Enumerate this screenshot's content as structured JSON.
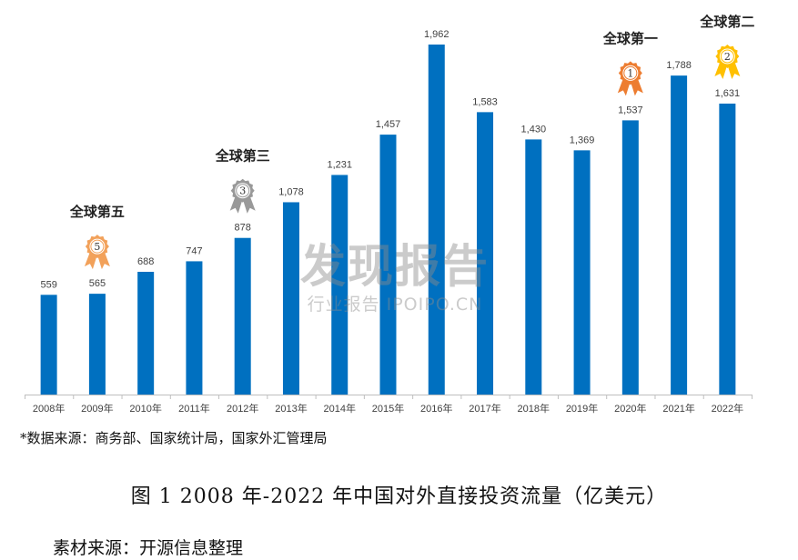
{
  "chart_data": {
    "type": "bar",
    "categories": [
      "2008年",
      "2009年",
      "2010年",
      "2011年",
      "2012年",
      "2013年",
      "2014年",
      "2015年",
      "2016年",
      "2017年",
      "2018年",
      "2019年",
      "2020年",
      "2021年",
      "2022年"
    ],
    "values": [
      559,
      565,
      688,
      747,
      878,
      1078,
      1231,
      1457,
      1962,
      1583,
      1430,
      1369,
      1537,
      1788,
      1631
    ],
    "value_labels": [
      "559",
      "565",
      "688",
      "747",
      "878",
      "1,078",
      "1,231",
      "1,457",
      "1,962",
      "1,583",
      "1,430",
      "1,369",
      "1,537",
      "1,788",
      "1,631"
    ],
    "bar_color": "#0070c0",
    "ylim": [
      0,
      2000
    ],
    "grid": false,
    "annotations": [
      {
        "category": "2009年",
        "label": "全球第五",
        "rank": "5",
        "color": "#f2a15a"
      },
      {
        "category": "2012年",
        "label": "全球第三",
        "rank": "3",
        "color": "#999999"
      },
      {
        "category": "2020年",
        "label": "全球第一",
        "rank": "1",
        "color": "#ed7d31"
      },
      {
        "category": "2022年",
        "label": "全球第二",
        "rank": "2",
        "color": "#ffc000"
      }
    ]
  },
  "watermark": {
    "logo": "发现报告",
    "sub": "行业报告 IPOIPO.CN"
  },
  "source_note": "*数据来源：商务部、国家统计局，国家外汇管理局",
  "caption": "图 1 2008 年-2022 年中国对外直接投资流量（亿美元）",
  "material_source": "素材来源：开源信息整理"
}
